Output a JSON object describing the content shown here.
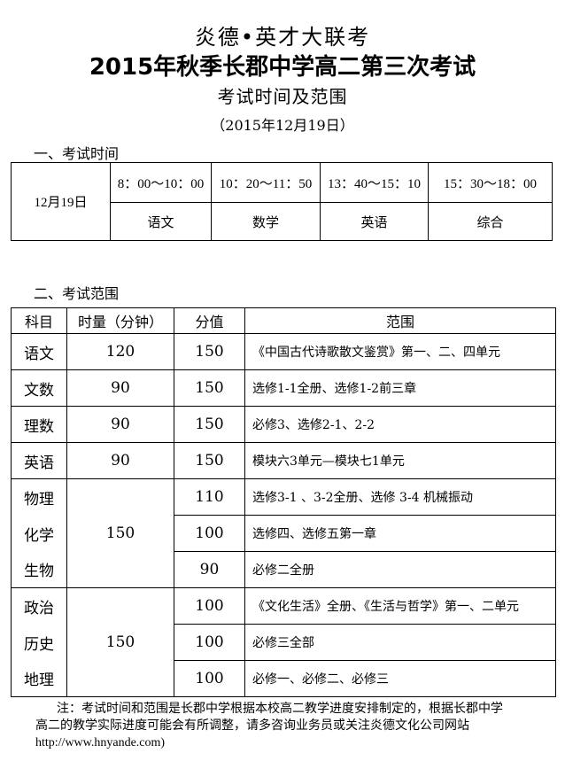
{
  "header": {
    "org": "炎德•英才大联考",
    "title": "2015年秋季长郡中学高二第三次考试",
    "subtitle": "考试时间及范围",
    "date": "（2015年12月19日）"
  },
  "section1": {
    "heading": "一、考试时间",
    "date": "12月19日",
    "slots": [
      {
        "time": "8：00～10：00",
        "subject": "语文"
      },
      {
        "time": "10：20～11：50",
        "subject": "数学"
      },
      {
        "time": "13：40～15：10",
        "subject": "英语"
      },
      {
        "time": "15：30～18：00",
        "subject": "综合"
      }
    ]
  },
  "section2": {
    "heading": "二、考试范围",
    "columns": [
      "科目",
      "时量（分钟）",
      "分值",
      "范围"
    ],
    "rows": [
      {
        "subject": "语文",
        "time": "120",
        "score": "150",
        "scope": "《中国古代诗歌散文鉴赏》第一、二、四单元"
      },
      {
        "subject": "文数",
        "time": "90",
        "score": "150",
        "scope": "选修1-1全册、选修1-2前三章"
      },
      {
        "subject": "理数",
        "time": "90",
        "score": "150",
        "scope": "必修3、选修2-1、2-2"
      },
      {
        "subject": "英语",
        "time": "90",
        "score": "150",
        "scope": "模块六3单元—模块七1单元"
      },
      {
        "subject": "物理",
        "time": "150",
        "score": "110",
        "scope": "选修3-1 、3-2全册、选修 3-4 机械振动"
      },
      {
        "subject": "化学",
        "score": "100",
        "scope": "选修四、选修五第一章"
      },
      {
        "subject": "生物",
        "score": "90",
        "scope": "必修二全册"
      },
      {
        "subject": "政治",
        "time": "150",
        "score": "100",
        "scope": "《文化生活》全册、《生活与哲学》第一、二单元"
      },
      {
        "subject": "历史",
        "score": "100",
        "scope": "必修三全部"
      },
      {
        "subject": "地理",
        "score": "100",
        "scope": "必修一、必修二、必修三"
      }
    ]
  },
  "note": {
    "line1": "注：考试时间和范围是长郡中学根据本校高二教学进度安排制定的，根据长郡中学",
    "line2": "高二的教学实际进度可能会有所调整，请多咨询业务员或关注炎德文化公司网站",
    "url": "http://www.hnyande.com)"
  }
}
